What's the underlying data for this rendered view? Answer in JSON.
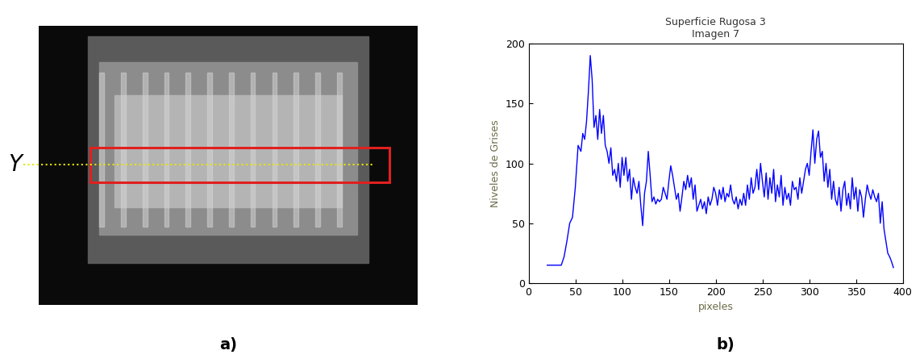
{
  "chart_data": {
    "type": "line",
    "title": "Superficie Rugosa 3",
    "subtitle": "Imagen 7",
    "xlabel": "pixeles",
    "ylabel": "Niveles de Grises",
    "color": "#0000ff",
    "x": [
      20,
      25,
      30,
      35,
      38,
      41,
      44,
      47,
      50,
      53,
      56,
      58,
      60,
      62,
      64,
      66,
      68,
      70,
      72,
      74,
      76,
      78,
      80,
      82,
      84,
      86,
      88,
      90,
      92,
      94,
      96,
      98,
      100,
      102,
      104,
      106,
      108,
      110,
      112,
      114,
      116,
      118,
      120,
      122,
      124,
      126,
      128,
      130,
      132,
      134,
      136,
      138,
      140,
      142,
      144,
      146,
      148,
      150,
      152,
      154,
      156,
      158,
      160,
      162,
      164,
      166,
      168,
      170,
      172,
      174,
      176,
      178,
      180,
      182,
      184,
      186,
      188,
      190,
      192,
      194,
      196,
      198,
      200,
      202,
      204,
      206,
      208,
      210,
      212,
      214,
      216,
      218,
      220,
      222,
      224,
      226,
      228,
      230,
      232,
      234,
      236,
      238,
      240,
      242,
      244,
      246,
      248,
      250,
      252,
      254,
      256,
      258,
      260,
      262,
      264,
      266,
      268,
      270,
      272,
      274,
      276,
      278,
      280,
      282,
      284,
      286,
      288,
      290,
      292,
      294,
      296,
      298,
      300,
      302,
      304,
      306,
      308,
      310,
      312,
      314,
      316,
      318,
      320,
      322,
      324,
      326,
      328,
      330,
      332,
      334,
      336,
      338,
      340,
      342,
      344,
      346,
      348,
      350,
      352,
      354,
      356,
      358,
      360,
      362,
      364,
      366,
      368,
      370,
      372,
      374,
      376,
      378,
      380,
      382,
      384,
      386,
      388,
      390
    ],
    "values": [
      15,
      15,
      15,
      15,
      22,
      35,
      50,
      55,
      80,
      115,
      110,
      125,
      120,
      135,
      160,
      190,
      170,
      130,
      140,
      120,
      145,
      125,
      140,
      115,
      110,
      100,
      113,
      90,
      95,
      85,
      100,
      80,
      105,
      90,
      105,
      85,
      95,
      70,
      88,
      80,
      75,
      85,
      65,
      48,
      75,
      85,
      110,
      90,
      68,
      72,
      66,
      70,
      68,
      70,
      80,
      75,
      70,
      85,
      98,
      90,
      80,
      70,
      75,
      60,
      72,
      85,
      78,
      90,
      80,
      88,
      70,
      82,
      60,
      65,
      70,
      62,
      68,
      58,
      72,
      65,
      70,
      80,
      75,
      65,
      78,
      70,
      80,
      68,
      75,
      72,
      82,
      70,
      66,
      72,
      62,
      70,
      65,
      75,
      65,
      82,
      70,
      88,
      75,
      80,
      95,
      78,
      100,
      85,
      72,
      92,
      70,
      88,
      75,
      95,
      68,
      82,
      72,
      90,
      65,
      80,
      70,
      75,
      65,
      85,
      78,
      80,
      70,
      88,
      75,
      85,
      95,
      100,
      90,
      110,
      128,
      100,
      120,
      127,
      105,
      110,
      85,
      100,
      80,
      95,
      70,
      85,
      70,
      65,
      80,
      60,
      78,
      85,
      65,
      75,
      62,
      88,
      70,
      80,
      60,
      78,
      72,
      55,
      70,
      82,
      75,
      70,
      78,
      72,
      68,
      75,
      50,
      68,
      45,
      35,
      25,
      22,
      18,
      13
    ],
    "xlim": [
      0,
      400
    ],
    "xticks": [
      0,
      50,
      100,
      150,
      200,
      250,
      300,
      350,
      400
    ],
    "ylim": [
      0,
      200
    ],
    "yticks": [
      0,
      50,
      100,
      150,
      200
    ],
    "grid": false
  },
  "image_panel": {
    "caption": "a)",
    "marker_label": "Y"
  },
  "chart_caption": "b)"
}
